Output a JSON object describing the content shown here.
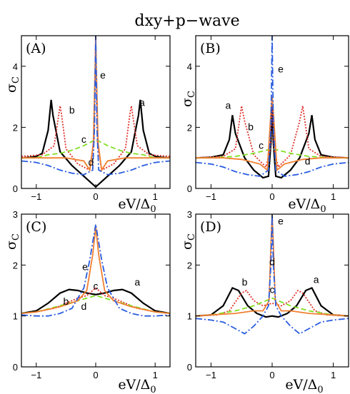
{
  "title": "dxy+p−wave",
  "curve_styles": [
    {
      "key": "a",
      "color": "#000000",
      "dash": ""
    },
    {
      "key": "b",
      "color": "#e0302a",
      "dash": "2,2"
    },
    {
      "key": "c",
      "color": "#80e020",
      "dash": "7,4"
    },
    {
      "key": "d",
      "color": "#f08030",
      "dash": ""
    },
    {
      "key": "e",
      "color": "#2a5de0",
      "dash": "9,3,2,3"
    }
  ],
  "axis_text": {
    "ylabel_main": "σ",
    "ylabel_sub": "C",
    "xlabel_main": "eV/Δ",
    "xlabel_sub": "0"
  },
  "chart_data": [
    {
      "type": "line",
      "panel_label": "(A)",
      "xlim": [
        -1.25,
        1.25
      ],
      "ylim": [
        0,
        5
      ],
      "xticks": [
        -1,
        0,
        1
      ],
      "yticks": [
        0,
        2,
        4
      ],
      "series": [
        {
          "name": "a",
          "x": [
            -1.25,
            -1.1,
            -1.0,
            -0.9,
            -0.8,
            -0.75,
            -0.72,
            -0.6,
            -0.4,
            -0.2,
            0,
            0.2,
            0.4,
            0.6,
            0.72,
            0.75,
            0.8,
            0.9,
            1.0,
            1.1,
            1.25
          ],
          "y": [
            1.0,
            1.02,
            1.05,
            1.15,
            1.9,
            2.9,
            2.4,
            1.2,
            0.75,
            0.4,
            0.05,
            0.4,
            0.75,
            1.2,
            2.4,
            2.9,
            1.9,
            1.15,
            1.05,
            1.02,
            1.0
          ]
        },
        {
          "name": "b",
          "x": [
            -1.25,
            -0.9,
            -0.7,
            -0.6,
            -0.58,
            -0.5,
            -0.3,
            -0.1,
            -0.03,
            0,
            0.03,
            0.1,
            0.3,
            0.5,
            0.58,
            0.6,
            0.7,
            0.9,
            1.25
          ],
          "y": [
            1.05,
            1.1,
            1.4,
            2.7,
            2.5,
            1.3,
            0.8,
            0.6,
            1.5,
            4.8,
            1.5,
            0.6,
            0.8,
            1.3,
            2.5,
            2.7,
            1.4,
            1.1,
            1.05
          ]
        },
        {
          "name": "c",
          "x": [
            -1.25,
            -1.0,
            -0.8,
            -0.6,
            -0.4,
            -0.2,
            0,
            0.2,
            0.4,
            0.6,
            0.8,
            1.0,
            1.25
          ],
          "y": [
            1.0,
            1.0,
            1.1,
            1.15,
            1.25,
            1.4,
            1.6,
            1.4,
            1.25,
            1.15,
            1.1,
            1.0,
            1.0
          ]
        },
        {
          "name": "d",
          "x": [
            -1.25,
            -0.8,
            -0.5,
            -0.2,
            -0.1,
            -0.04,
            -0.01,
            0,
            0.01,
            0.04,
            0.1,
            0.2,
            0.5,
            0.8,
            1.25
          ],
          "y": [
            1.0,
            1.0,
            1.0,
            0.9,
            0.6,
            1.5,
            4.0,
            5.0,
            4.0,
            1.5,
            0.6,
            0.9,
            1.0,
            1.0,
            1.0
          ]
        },
        {
          "name": "e",
          "x": [
            -1.25,
            -1.0,
            -0.8,
            -0.6,
            -0.4,
            -0.2,
            -0.05,
            -0.02,
            0,
            0.02,
            0.05,
            0.2,
            0.4,
            0.6,
            0.8,
            1.0,
            1.25
          ],
          "y": [
            0.9,
            0.85,
            0.75,
            0.6,
            0.5,
            0.45,
            0.6,
            2.0,
            5.0,
            2.0,
            0.6,
            0.45,
            0.5,
            0.6,
            0.75,
            0.85,
            0.9
          ]
        }
      ],
      "annotations": [
        {
          "text": "a",
          "x": 0.78,
          "y": 2.7
        },
        {
          "text": "b",
          "x": -0.4,
          "y": 2.45
        },
        {
          "text": "c",
          "x": -0.2,
          "y": 1.5
        },
        {
          "text": "d",
          "x": -0.08,
          "y": 0.75
        },
        {
          "text": "e",
          "x": 0.12,
          "y": 3.6
        }
      ]
    },
    {
      "type": "line",
      "panel_label": "(B)",
      "xlim": [
        -1.25,
        1.25
      ],
      "ylim": [
        0,
        5
      ],
      "xticks": [
        -1,
        0,
        1
      ],
      "yticks": [
        0,
        2,
        4
      ],
      "series": [
        {
          "name": "a",
          "x": [
            -1.25,
            -1.0,
            -0.8,
            -0.7,
            -0.65,
            -0.6,
            -0.45,
            -0.3,
            -0.15,
            -0.06,
            -0.02,
            0,
            0.02,
            0.06,
            0.15,
            0.3,
            0.45,
            0.6,
            0.65,
            0.7,
            0.8,
            1.0,
            1.25
          ],
          "y": [
            1.0,
            1.02,
            1.1,
            1.6,
            2.4,
            1.8,
            1.0,
            0.6,
            0.35,
            0.4,
            1.5,
            2.7,
            1.5,
            0.4,
            0.35,
            0.6,
            1.0,
            1.8,
            2.4,
            1.6,
            1.1,
            1.02,
            1.0
          ]
        },
        {
          "name": "b",
          "x": [
            -1.25,
            -0.8,
            -0.6,
            -0.5,
            -0.45,
            -0.3,
            -0.1,
            -0.03,
            0,
            0.03,
            0.1,
            0.3,
            0.45,
            0.5,
            0.6,
            0.8,
            1.25
          ],
          "y": [
            1.0,
            1.05,
            1.3,
            2.7,
            2.2,
            1.1,
            0.7,
            1.3,
            2.8,
            1.3,
            0.7,
            1.1,
            2.2,
            2.7,
            1.3,
            1.05,
            1.0
          ]
        },
        {
          "name": "c",
          "x": [
            -1.25,
            -1.0,
            -0.6,
            -0.3,
            0,
            0.3,
            0.6,
            1.0,
            1.25
          ],
          "y": [
            1.0,
            1.0,
            1.05,
            1.15,
            1.3,
            1.15,
            1.05,
            1.0,
            1.0
          ]
        },
        {
          "name": "d",
          "x": [
            -1.25,
            -0.8,
            -0.5,
            -0.2,
            -0.08,
            -0.02,
            0,
            0.02,
            0.08,
            0.2,
            0.5,
            0.8,
            1.25
          ],
          "y": [
            1.0,
            1.0,
            0.95,
            0.8,
            0.6,
            2.5,
            3.0,
            2.5,
            0.6,
            0.8,
            0.95,
            1.0,
            1.0
          ]
        },
        {
          "name": "e",
          "x": [
            -1.25,
            -1.0,
            -0.8,
            -0.6,
            -0.4,
            -0.2,
            -0.06,
            -0.02,
            0,
            0.02,
            0.06,
            0.2,
            0.4,
            0.6,
            0.8,
            1.0,
            1.25
          ],
          "y": [
            0.85,
            0.8,
            0.7,
            0.55,
            0.45,
            0.4,
            0.6,
            2.0,
            5.0,
            2.0,
            0.6,
            0.4,
            0.45,
            0.55,
            0.7,
            0.8,
            0.85
          ]
        }
      ],
      "annotations": [
        {
          "text": "a",
          "x": -0.72,
          "y": 2.6
        },
        {
          "text": "b",
          "x": -0.35,
          "y": 1.9
        },
        {
          "text": "c",
          "x": -0.18,
          "y": 1.3
        },
        {
          "text": "d",
          "x": 0.58,
          "y": 0.78
        },
        {
          "text": "e",
          "x": 0.14,
          "y": 3.8
        }
      ]
    },
    {
      "type": "line",
      "panel_label": "(C)",
      "xlim": [
        -1.25,
        1.25
      ],
      "ylim": [
        0,
        3
      ],
      "xticks": [
        -1,
        0,
        1
      ],
      "yticks": [
        0,
        1,
        2,
        3
      ],
      "series": [
        {
          "name": "a",
          "x": [
            -1.25,
            -1.0,
            -0.8,
            -0.6,
            -0.45,
            -0.3,
            -0.15,
            0,
            0.15,
            0.3,
            0.45,
            0.6,
            0.8,
            1.0,
            1.25
          ],
          "y": [
            1.05,
            1.1,
            1.25,
            1.45,
            1.52,
            1.5,
            1.45,
            1.42,
            1.45,
            1.5,
            1.52,
            1.45,
            1.25,
            1.1,
            1.05
          ]
        },
        {
          "name": "b",
          "x": [
            -1.25,
            -1.0,
            -0.7,
            -0.5,
            -0.3,
            -0.15,
            0,
            0.15,
            0.3,
            0.5,
            0.7,
            1.0,
            1.25
          ],
          "y": [
            1.05,
            1.08,
            1.15,
            1.25,
            1.35,
            1.4,
            1.55,
            1.4,
            1.35,
            1.25,
            1.15,
            1.08,
            1.05
          ]
        },
        {
          "name": "c",
          "x": [
            -1.25,
            -1.0,
            -0.6,
            -0.3,
            0,
            0.3,
            0.6,
            1.0,
            1.25
          ],
          "y": [
            1.05,
            1.08,
            1.2,
            1.3,
            1.4,
            1.3,
            1.2,
            1.08,
            1.05
          ]
        },
        {
          "name": "d",
          "x": [
            -1.25,
            -1.0,
            -0.6,
            -0.3,
            -0.15,
            -0.05,
            0,
            0.05,
            0.15,
            0.3,
            0.6,
            1.0,
            1.25
          ],
          "y": [
            1.05,
            1.08,
            1.18,
            1.3,
            1.5,
            2.2,
            2.75,
            2.2,
            1.5,
            1.3,
            1.18,
            1.08,
            1.05
          ]
        },
        {
          "name": "e",
          "x": [
            -1.25,
            -1.0,
            -0.8,
            -0.6,
            -0.4,
            -0.2,
            -0.1,
            0,
            0.1,
            0.2,
            0.4,
            0.6,
            0.8,
            1.0,
            1.25
          ],
          "y": [
            1.02,
            1.0,
            1.0,
            1.05,
            1.15,
            1.55,
            2.1,
            2.8,
            2.1,
            1.55,
            1.15,
            1.05,
            1.0,
            1.0,
            1.02
          ]
        }
      ],
      "annotations": [
        {
          "text": "a",
          "x": 0.7,
          "y": 1.6
        },
        {
          "text": "b",
          "x": -0.5,
          "y": 1.22
        },
        {
          "text": "c",
          "x": 0.0,
          "y": 1.52
        },
        {
          "text": "d",
          "x": -0.2,
          "y": 1.12
        },
        {
          "text": "e",
          "x": -0.18,
          "y": 1.9
        }
      ]
    },
    {
      "type": "line",
      "panel_label": "(D)",
      "xlim": [
        -1.25,
        1.25
      ],
      "ylim": [
        0,
        3
      ],
      "xticks": [
        -1,
        0,
        1
      ],
      "yticks": [
        0,
        1,
        2,
        3
      ],
      "series": [
        {
          "name": "a",
          "x": [
            -1.25,
            -1.0,
            -0.8,
            -0.65,
            -0.55,
            -0.4,
            -0.25,
            -0.1,
            0,
            0.1,
            0.25,
            0.4,
            0.55,
            0.65,
            0.8,
            1.0,
            1.25
          ],
          "y": [
            1.0,
            1.02,
            1.2,
            1.55,
            1.5,
            1.2,
            1.05,
            0.98,
            1.0,
            0.98,
            1.05,
            1.2,
            1.5,
            1.55,
            1.2,
            1.02,
            1.0
          ]
        },
        {
          "name": "b",
          "x": [
            -1.25,
            -0.9,
            -0.7,
            -0.5,
            -0.42,
            -0.3,
            -0.15,
            0,
            0.15,
            0.3,
            0.42,
            0.5,
            0.7,
            0.9,
            1.25
          ],
          "y": [
            1.0,
            1.02,
            1.1,
            1.45,
            1.5,
            1.3,
            1.2,
            1.25,
            1.2,
            1.3,
            1.5,
            1.45,
            1.1,
            1.02,
            1.0
          ]
        },
        {
          "name": "c",
          "x": [
            -1.25,
            -1.0,
            -0.6,
            -0.3,
            0,
            0.3,
            0.6,
            1.0,
            1.25
          ],
          "y": [
            1.0,
            1.02,
            1.1,
            1.2,
            1.35,
            1.2,
            1.1,
            1.02,
            1.0
          ]
        },
        {
          "name": "d",
          "x": [
            -1.25,
            -1.0,
            -0.6,
            -0.3,
            -0.15,
            -0.05,
            -0.02,
            0,
            0.02,
            0.05,
            0.15,
            0.3,
            0.6,
            1.0,
            1.25
          ],
          "y": [
            1.0,
            1.02,
            1.05,
            1.1,
            1.1,
            1.3,
            2.4,
            3.0,
            2.4,
            1.3,
            1.1,
            1.1,
            1.05,
            1.02,
            1.0
          ]
        },
        {
          "name": "e",
          "x": [
            -1.25,
            -1.0,
            -0.8,
            -0.6,
            -0.45,
            -0.3,
            -0.15,
            -0.06,
            -0.02,
            0,
            0.02,
            0.06,
            0.15,
            0.3,
            0.45,
            0.6,
            0.8,
            1.0,
            1.25
          ],
          "y": [
            0.95,
            0.92,
            0.88,
            0.75,
            0.65,
            0.8,
            1.0,
            1.2,
            2.0,
            3.0,
            2.0,
            1.2,
            1.0,
            0.8,
            0.65,
            0.75,
            0.88,
            0.92,
            0.95
          ]
        }
      ],
      "annotations": [
        {
          "text": "a",
          "x": 0.72,
          "y": 1.65
        },
        {
          "text": "b",
          "x": -0.45,
          "y": 1.6
        },
        {
          "text": "c",
          "x": 0.0,
          "y": 1.45
        },
        {
          "text": "d",
          "x": 0.0,
          "y": 2.0
        },
        {
          "text": "e",
          "x": 0.14,
          "y": 2.8
        }
      ]
    }
  ]
}
